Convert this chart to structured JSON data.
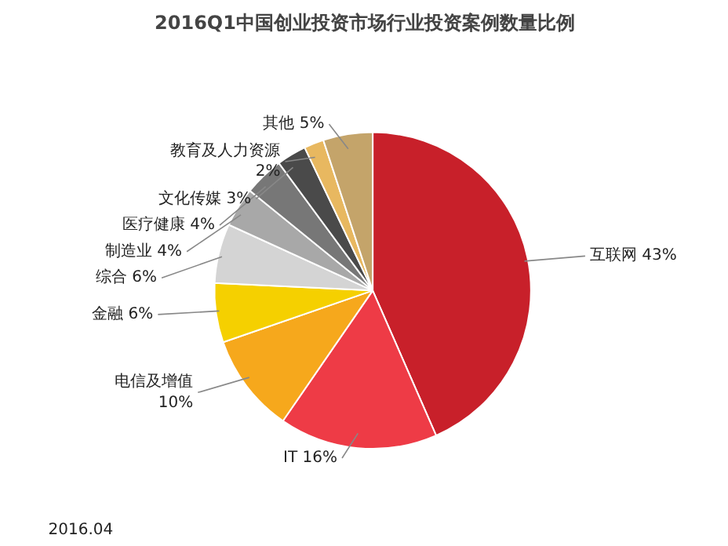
{
  "chart_data": {
    "type": "pie",
    "title": "2016Q1中国创业投资市场行业投资案例数量比例",
    "categories": [
      "互联网",
      "IT",
      "电信及增值",
      "金融",
      "综合",
      "制造业",
      "医疗健康",
      "文化传媒",
      "教育及人力资源",
      "其他"
    ],
    "values": [
      43,
      16,
      10,
      6,
      6,
      4,
      4,
      3,
      2,
      5
    ],
    "value_labels": [
      "43%",
      "16%",
      "10%",
      "6%",
      "6%",
      "4%",
      "4%",
      "3%",
      "2%",
      "5%"
    ],
    "colors": [
      "#c8202a",
      "#ee3b46",
      "#f6a81c",
      "#f5d000",
      "#d4d4d4",
      "#a8a8a8",
      "#777777",
      "#4a4a4a",
      "#e8b860",
      "#c4a46a"
    ],
    "annotations": [
      "2016.04"
    ]
  }
}
